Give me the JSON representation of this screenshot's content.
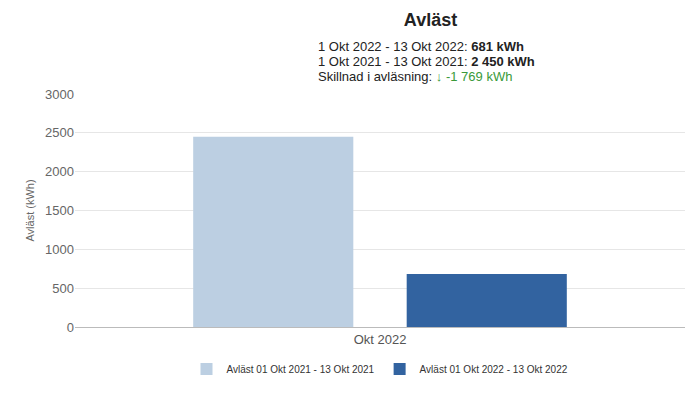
{
  "chart_data": {
    "type": "bar",
    "title": "Avläst",
    "annotations": [
      {
        "label": "1 Okt 2022 - 13 Okt 2022: ",
        "value": "681 kWh"
      },
      {
        "label": "1 Okt 2021 - 13 Okt 2021: ",
        "value": "2 450 kWh"
      },
      {
        "label": "Skillnad i avläsning: ",
        "value": "↓ -1 769 kWh",
        "color": "#3a9a3a"
      }
    ],
    "y_label": "Avläst (kWh)",
    "categories": [
      "Okt 2022"
    ],
    "series": [
      {
        "name": "Avläst 01 Okt 2021 - 13 Okt 2021",
        "color": "#bccfe2",
        "values": [
          2450
        ]
      },
      {
        "name": "Avläst 01 Okt 2022 - 13 Okt 2022",
        "color": "#3263a0",
        "values": [
          681
        ]
      }
    ],
    "ylim": [
      0,
      3000
    ],
    "yticks": [
      0,
      500,
      1000,
      1500,
      2000,
      2500,
      3000
    ],
    "grid": true,
    "legend": "bottom"
  }
}
